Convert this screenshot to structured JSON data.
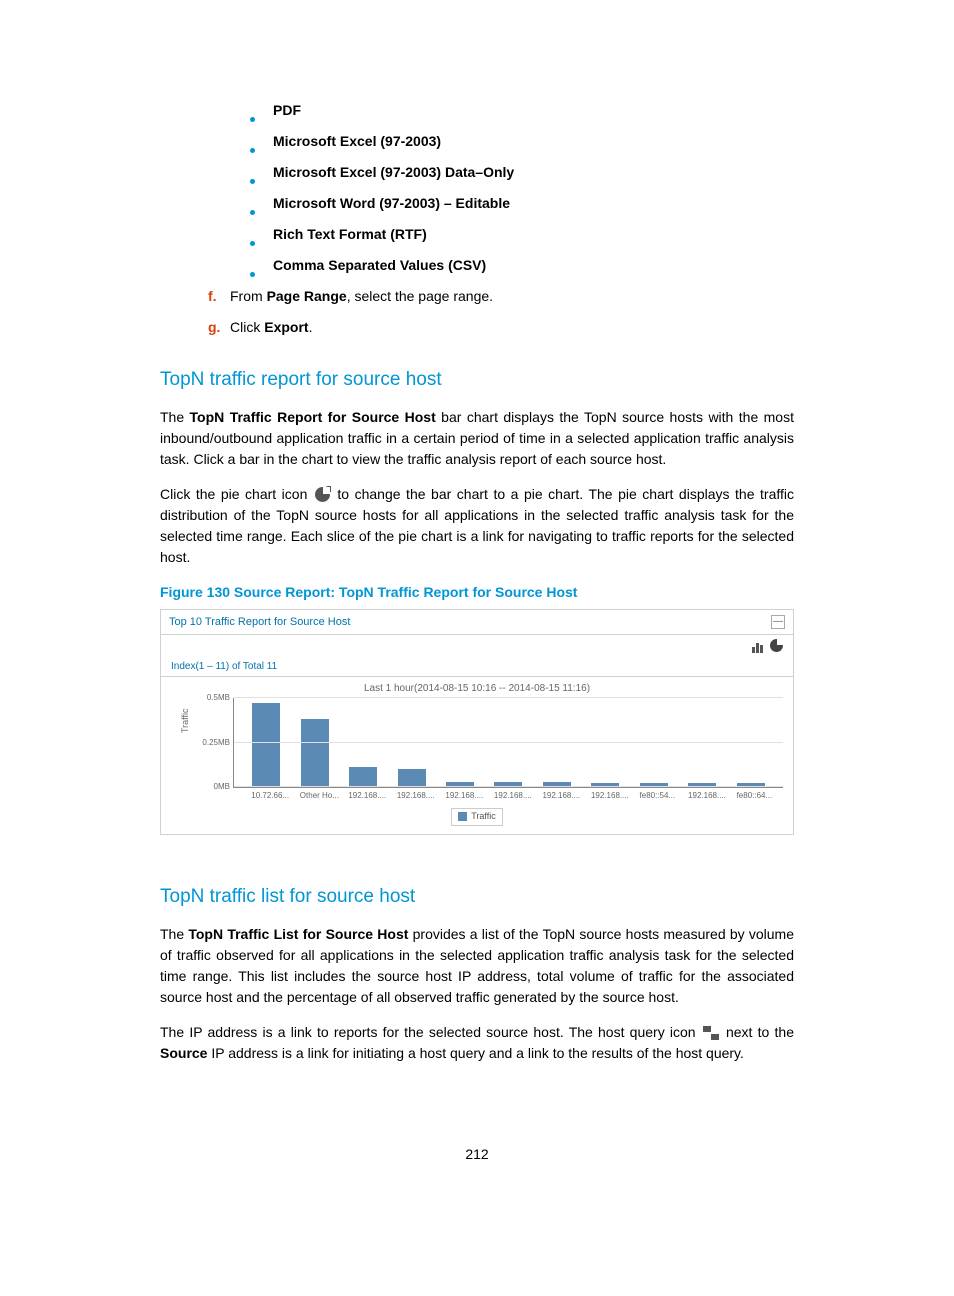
{
  "bullets": {
    "items": [
      "PDF",
      "Microsoft Excel (97-2003)",
      "Microsoft Excel (97-2003) Data–Only",
      "Microsoft Word (97-2003) – Editable",
      "Rich Text Format (RTF)",
      "Comma Separated Values (CSV)"
    ]
  },
  "steps": {
    "f": {
      "letter": "f.",
      "prefix": "From ",
      "bold": "Page Range",
      "suffix": ", select the page range."
    },
    "g": {
      "letter": "g.",
      "prefix": "Click ",
      "bold": "Export",
      "suffix": "."
    }
  },
  "section1": {
    "heading": "TopN traffic report for source host",
    "p1a": "The ",
    "p1b": "TopN Traffic Report for Source Host",
    "p1c": " bar chart displays the TopN source hosts with the most inbound/outbound application traffic in a certain period of time in a selected application traffic analysis task. Click a bar in the chart to view the traffic analysis report of each source host.",
    "p2a": "Click the pie chart icon ",
    "p2b": " to change the bar chart to a pie chart. The pie chart displays the traffic distribution of the TopN source hosts for all applications in the selected traffic analysis task for the selected time range. Each slice of the pie chart is a link for navigating to traffic reports for the selected host."
  },
  "figure": {
    "caption": "Figure 130 Source Report: TopN Traffic Report for Source Host"
  },
  "chart": {
    "title": "Top 10 Traffic Report for Source Host",
    "collapse": "—",
    "index_text": "Index(1 – 11) of Total 11",
    "subtitle": "Last 1 hour(2014-08-15 10:16 -- 2014-08-15 11:16)",
    "type": "bar",
    "ylabel": "Traffic",
    "ylim": [
      0,
      0.5
    ],
    "yticks": [
      {
        "pos": 0,
        "label": "0MB"
      },
      {
        "pos": 50,
        "label": "0.25MB"
      },
      {
        "pos": 100,
        "label": "0.5MB"
      }
    ],
    "bar_color": "#5b8bb5",
    "grid_color": "#e0e0e0",
    "background_color": "#ffffff",
    "categories": [
      "10.72.66...",
      "Other Ho...",
      "192.168....",
      "192.168....",
      "192.168....",
      "192.168....",
      "192.168....",
      "192.168....",
      "fe80::54...",
      "192.168....",
      "fe80::64..."
    ],
    "values": [
      0.47,
      0.38,
      0.11,
      0.1,
      0.03,
      0.03,
      0.03,
      0.02,
      0.02,
      0.02,
      0.02
    ],
    "legend_label": "Traffic"
  },
  "section2": {
    "heading": "TopN traffic list for source host",
    "p1a": "The ",
    "p1b": "TopN Traffic List for Source Host",
    "p1c": " provides a list of the TopN source hosts measured by volume of traffic observed for all applications in the selected application traffic analysis task for the selected time range. This list includes the source host IP address, total volume of traffic for the associated source host and the percentage of all observed traffic generated by the source host.",
    "p2a": "The IP address is a link to reports for the selected source host. The host query icon ",
    "p2b": " next to the ",
    "p2c": "Source",
    "p2d": " IP address is a link for initiating a host query and a link to the results of the host query."
  },
  "page_number": "212"
}
